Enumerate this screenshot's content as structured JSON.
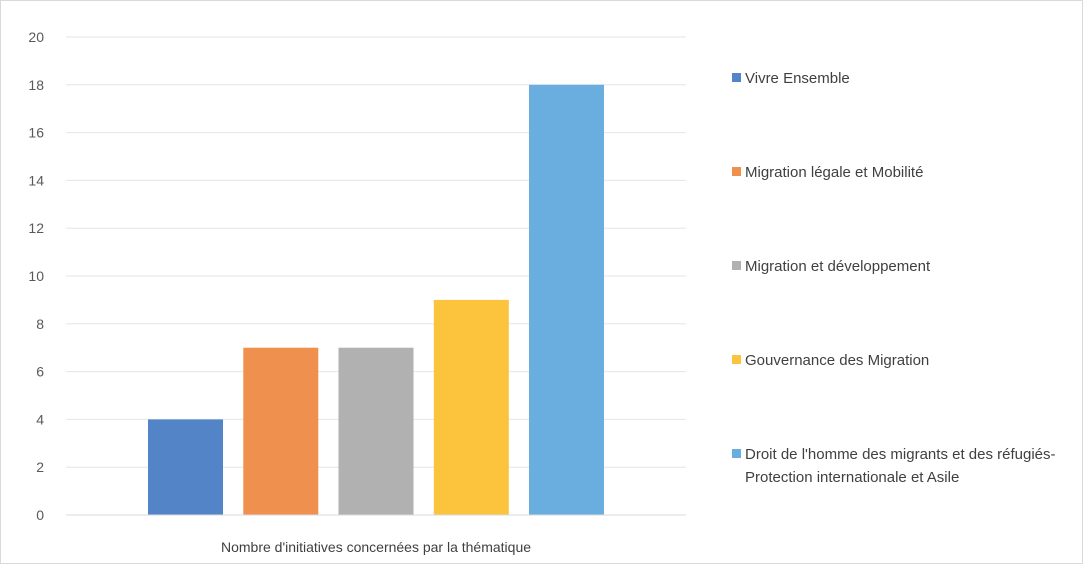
{
  "chart_data": {
    "type": "bar",
    "categories": [
      "Nombre d'initiatives concernées par la thématique"
    ],
    "series": [
      {
        "name": "Vivre Ensemble",
        "values": [
          4
        ],
        "color": "#5484c8"
      },
      {
        "name": "Migration légale et Mobilité",
        "values": [
          7
        ],
        "color": "#f0904e"
      },
      {
        "name": "Migration et développement",
        "values": [
          7
        ],
        "color": "#b1b1b1"
      },
      {
        "name": "Gouvernance des Migration",
        "values": [
          9
        ],
        "color": "#fcc33d"
      },
      {
        "name": "Droit de l'homme des migrants et des réfugiés-Protection internationale et Asile",
        "values": [
          18
        ],
        "color": "#6aaddf"
      }
    ],
    "title": "",
    "xlabel": "",
    "ylabel": "",
    "ylim": [
      0,
      20
    ],
    "yticks": [
      "0",
      "2",
      "4",
      "6",
      "8",
      "10",
      "12",
      "14",
      "16",
      "18",
      "20"
    ],
    "grid": true,
    "legend_position": "right"
  }
}
